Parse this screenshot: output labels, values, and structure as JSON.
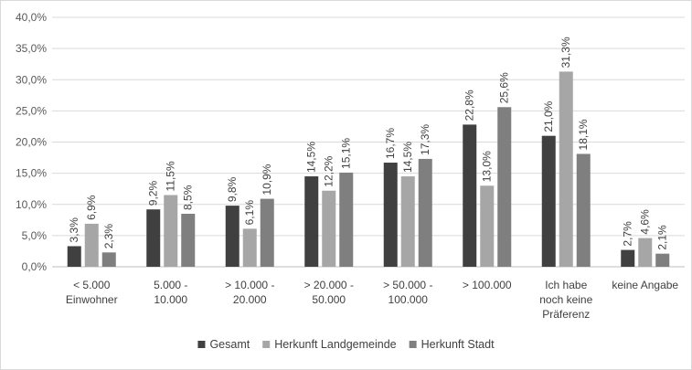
{
  "chart_data": {
    "type": "bar",
    "categories": [
      [
        "< 5.000",
        "Einwohner"
      ],
      [
        "5.000 -",
        "10.000"
      ],
      [
        "> 10.000 -",
        "20.000"
      ],
      [
        "> 20.000 -",
        "50.000"
      ],
      [
        "> 50.000 -",
        "100.000"
      ],
      [
        "> 100.000"
      ],
      [
        "Ich habe",
        "noch keine",
        "Präferenz"
      ],
      [
        "keine Angabe"
      ]
    ],
    "series": [
      {
        "name": "Gesamt",
        "color": "#404040",
        "values": [
          3.3,
          9.2,
          9.8,
          14.5,
          16.7,
          22.8,
          21.0,
          2.7
        ],
        "labels": [
          "3,3%",
          "9,2%",
          "9,8%",
          "14,5%",
          "16,7%",
          "22,8%",
          "21,0%",
          "2,7%"
        ]
      },
      {
        "name": "Herkunft Landgemeinde",
        "color": "#a6a6a6",
        "values": [
          6.9,
          11.5,
          6.1,
          12.2,
          14.5,
          13.0,
          31.3,
          4.6
        ],
        "labels": [
          "6,9%",
          "11,5%",
          "6,1%",
          "12,2%",
          "14,5%",
          "13,0%",
          "31,3%",
          "4,6%"
        ]
      },
      {
        "name": "Herkunft Stadt",
        "color": "#7f7f7f",
        "values": [
          2.3,
          8.5,
          10.9,
          15.1,
          17.3,
          25.6,
          18.1,
          2.1
        ],
        "labels": [
          "2,3%",
          "8,5%",
          "10,9%",
          "15,1%",
          "17,3%",
          "25,6%",
          "18,1%",
          "2,1%"
        ]
      }
    ],
    "y_ticks": [
      "0,0%",
      "5,0%",
      "10,0%",
      "15,0%",
      "20,0%",
      "25,0%",
      "30,0%",
      "35,0%",
      "40,0%"
    ],
    "ylim": [
      0,
      40
    ],
    "ytick_step": 5,
    "gridlines": true,
    "legend_position": "bottom",
    "title": "",
    "xlabel": "",
    "ylabel": ""
  }
}
